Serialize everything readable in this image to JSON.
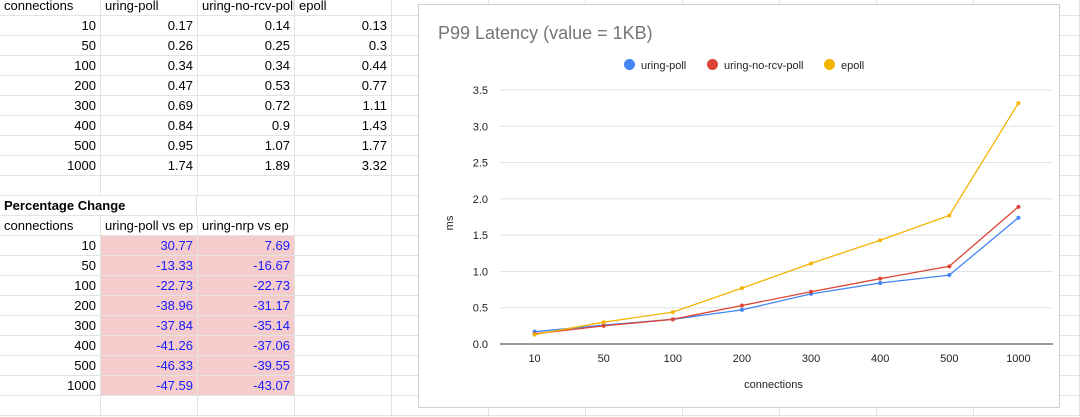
{
  "table1": {
    "headers": [
      "connections",
      "uring-poll",
      "uring-no-rcv-poll",
      "epoll"
    ],
    "rows": [
      [
        "10",
        "0.17",
        "0.14",
        "0.13"
      ],
      [
        "50",
        "0.26",
        "0.25",
        "0.3"
      ],
      [
        "100",
        "0.34",
        "0.34",
        "0.44"
      ],
      [
        "200",
        "0.47",
        "0.53",
        "0.77"
      ],
      [
        "300",
        "0.69",
        "0.72",
        "1.11"
      ],
      [
        "400",
        "0.84",
        "0.9",
        "1.43"
      ],
      [
        "500",
        "0.95",
        "1.07",
        "1.77"
      ],
      [
        "1000",
        "1.74",
        "1.89",
        "3.32"
      ]
    ]
  },
  "table2": {
    "section_title": "Percentage Change",
    "headers": [
      "connections",
      "uring-poll vs ep",
      "uring-nrp vs ep"
    ],
    "rows": [
      [
        "10",
        "30.77",
        "7.69"
      ],
      [
        "50",
        "-13.33",
        "-16.67"
      ],
      [
        "100",
        "-22.73",
        "-22.73"
      ],
      [
        "200",
        "-38.96",
        "-31.17"
      ],
      [
        "300",
        "-37.84",
        "-35.14"
      ],
      [
        "400",
        "-41.26",
        "-37.06"
      ],
      [
        "500",
        "-46.33",
        "-39.55"
      ],
      [
        "1000",
        "-47.59",
        "-43.07"
      ]
    ],
    "highlight_color": "#f4cccc",
    "value_color": "#1a1aff"
  },
  "chart_data": {
    "type": "line",
    "title": "P99 Latency (value = 1KB)",
    "xlabel": "connections",
    "ylabel": "ms",
    "categories": [
      "10",
      "50",
      "100",
      "200",
      "300",
      "400",
      "500",
      "1000"
    ],
    "ylim": [
      0,
      3.5
    ],
    "yticks": [
      "0.0",
      "0.5",
      "1.0",
      "1.5",
      "2.0",
      "2.5",
      "3.0",
      "3.5"
    ],
    "grid": true,
    "legend_position": "top",
    "series": [
      {
        "name": "uring-poll",
        "color": "#4285f4",
        "values": [
          0.17,
          0.26,
          0.34,
          0.47,
          0.69,
          0.84,
          0.95,
          1.74
        ]
      },
      {
        "name": "uring-no-rcv-poll",
        "color": "#db4437",
        "values": [
          0.14,
          0.25,
          0.34,
          0.53,
          0.72,
          0.9,
          1.07,
          1.89
        ]
      },
      {
        "name": "epoll",
        "color": "#f4b400",
        "values": [
          0.13,
          0.3,
          0.44,
          0.77,
          1.11,
          1.43,
          1.77,
          3.32
        ]
      }
    ]
  }
}
